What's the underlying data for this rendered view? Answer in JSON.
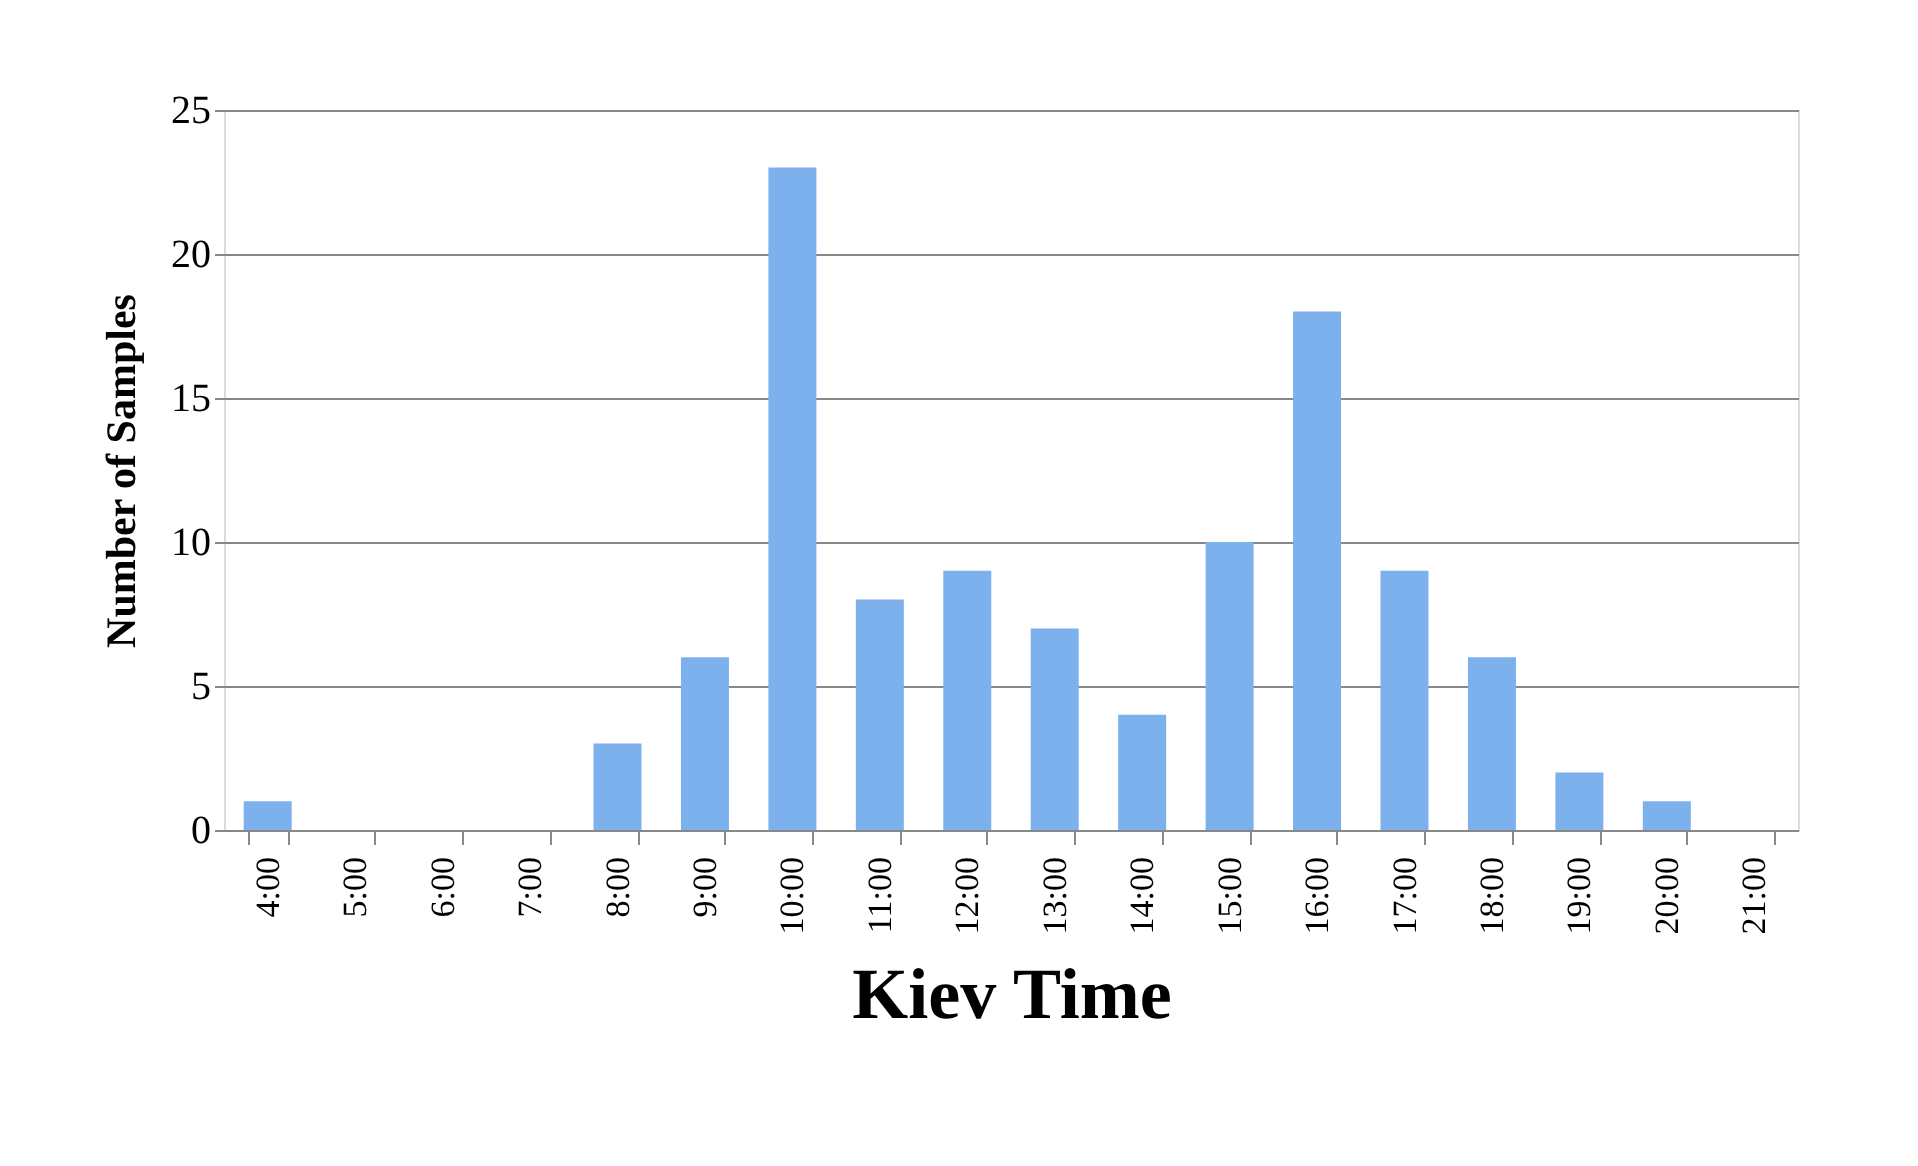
{
  "chart_data": {
    "type": "bar",
    "xlabel": "Kiev Time",
    "ylabel": "Number of Samples",
    "categories": [
      "4:00",
      "5:00",
      "6:00",
      "7:00",
      "8:00",
      "9:00",
      "10:00",
      "11:00",
      "12:00",
      "13:00",
      "14:00",
      "15:00",
      "16:00",
      "17:00",
      "18:00",
      "19:00",
      "20:00",
      "21:00"
    ],
    "values": [
      1,
      0,
      0,
      0,
      3,
      6,
      23,
      8,
      9,
      7,
      4,
      10,
      18,
      9,
      6,
      2,
      1,
      0
    ],
    "color": "#7db1ee",
    "ylim": [
      0,
      25
    ],
    "yticks": [
      0,
      5,
      10,
      15,
      20,
      25
    ],
    "grid": "y"
  }
}
